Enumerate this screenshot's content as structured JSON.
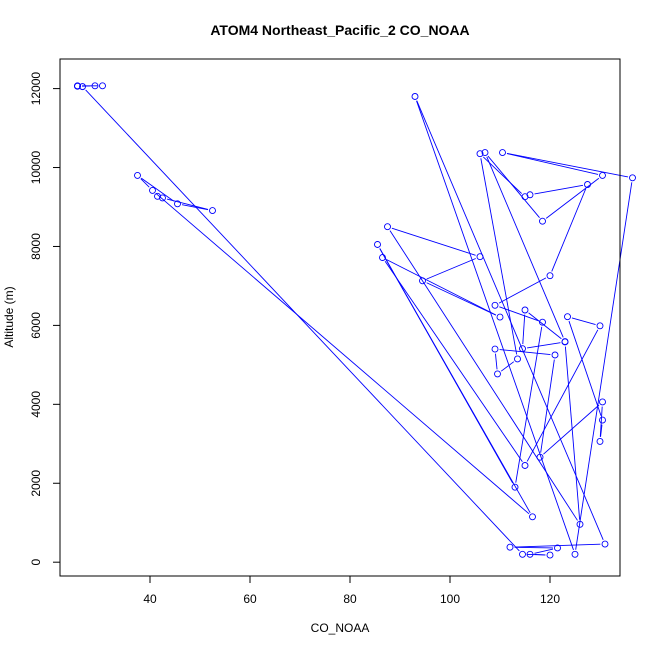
{
  "chart_data": {
    "type": "line",
    "title": "ATOM4 Northeast_Pacific_2 CO_NOAA",
    "xlabel": "CO_NOAA",
    "ylabel": "Altitude (m)",
    "xlim": [
      22,
      134
    ],
    "ylim": [
      -350,
      12750
    ],
    "x_ticks": [
      40,
      60,
      80,
      100,
      120
    ],
    "y_ticks": [
      0,
      2000,
      4000,
      6000,
      8000,
      10000,
      12000
    ],
    "colors": {
      "series": "#0000ff",
      "axis": "#000000",
      "background": "#ffffff"
    },
    "series": [
      {
        "x": [
          25.5,
          29,
          30.5,
          25.5,
          25.5,
          26.5,
          114.5,
          120,
          116,
          121.5,
          112,
          131,
          93,
          125,
          136.5,
          110.5,
          130.5,
          118.5,
          107,
          123,
          115,
          114.5,
          123,
          126,
          87.5,
          106,
          94.5,
          110,
          86.5,
          115,
          130,
          123.5,
          130.5,
          130,
          130.5,
          118,
          121,
          109,
          109.5,
          113.5,
          106,
          115,
          116,
          127.5,
          120,
          109,
          118.5,
          113,
          85.5,
          116.5,
          40.5,
          37.5,
          45.5,
          52.5,
          42.5,
          41.5
        ],
        "y": [
          12060,
          12070,
          12070,
          12070,
          12060,
          12050,
          200,
          180,
          200,
          360,
          380,
          460,
          11800,
          200,
          9740,
          10380,
          9800,
          8640,
          10380,
          5590,
          6390,
          5410,
          5580,
          960,
          8500,
          7740,
          7130,
          6210,
          7720,
          2450,
          5990,
          6220,
          3600,
          3060,
          4060,
          2660,
          5250,
          5400,
          4770,
          5150,
          10350,
          9260,
          9310,
          9570,
          7260,
          6510,
          6080,
          1900,
          8050,
          1150,
          9420,
          9800,
          9080,
          8910,
          9230,
          9270
        ]
      }
    ]
  }
}
